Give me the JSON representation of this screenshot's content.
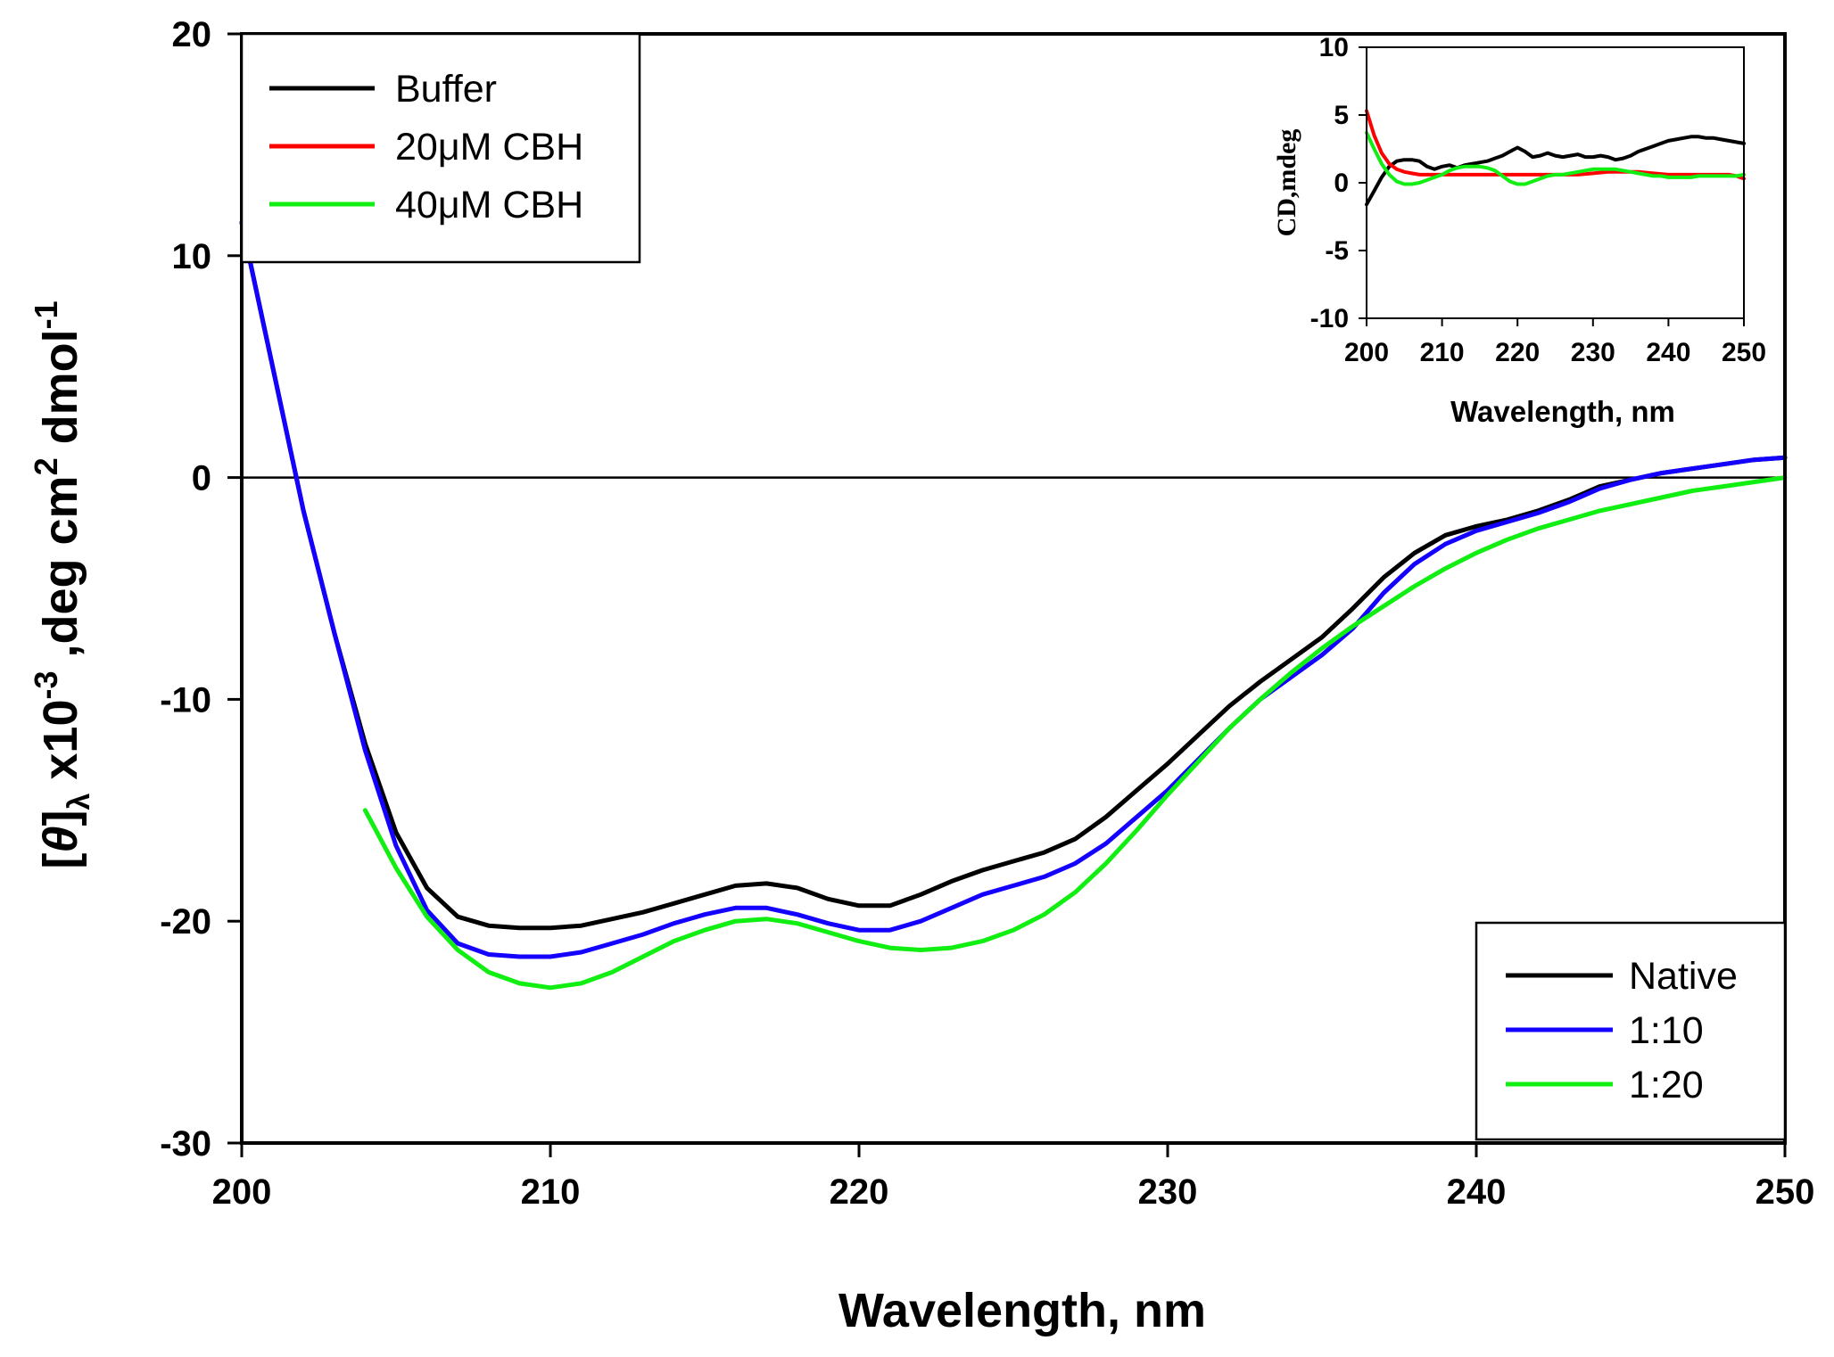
{
  "chart_data": [
    {
      "type": "line",
      "role": "main",
      "xlabel": "Wavelength, nm",
      "ylabel": {
        "bracket_open": "[",
        "theta": "θ",
        "bracket_close": "]",
        "subscript": "λ",
        "multiplier": " x10",
        "exp1": "-3",
        "unit_part1": " ,deg cm",
        "exp2": "2",
        "unit_part2": " dmol",
        "exp3": "-1"
      },
      "xlim": [
        200,
        250
      ],
      "ylim": [
        -30,
        20
      ],
      "xticks": [
        "200",
        "210",
        "220",
        "230",
        "240",
        "250"
      ],
      "yticks": [
        "-30",
        "-20",
        "-10",
        "0",
        "10",
        "20"
      ],
      "zero_line": true,
      "legend": {
        "placement": "bottom-right"
      },
      "series": [
        {
          "name": "Native",
          "color": "#000000",
          "x": [
            200,
            201,
            202,
            203,
            204,
            205,
            206,
            207,
            208,
            209,
            210,
            211,
            212,
            213,
            214,
            215,
            216,
            217,
            218,
            219,
            220,
            221,
            222,
            223,
            224,
            225,
            226,
            227,
            228,
            229,
            230,
            231,
            232,
            233,
            234,
            235,
            236,
            237,
            238,
            239,
            240,
            241,
            242,
            243,
            244,
            245,
            246,
            247,
            248,
            249,
            250
          ],
          "y": [
            11.5,
            5.0,
            -1.5,
            -7.0,
            -12.0,
            -16.0,
            -18.5,
            -19.8,
            -20.2,
            -20.3,
            -20.3,
            -20.2,
            -19.9,
            -19.6,
            -19.2,
            -18.8,
            -18.4,
            -18.3,
            -18.5,
            -19.0,
            -19.3,
            -19.3,
            -18.8,
            -18.2,
            -17.7,
            -17.3,
            -16.9,
            -16.3,
            -15.3,
            -14.1,
            -12.9,
            -11.6,
            -10.3,
            -9.2,
            -8.2,
            -7.2,
            -5.9,
            -4.5,
            -3.4,
            -2.6,
            -2.2,
            -1.9,
            -1.5,
            -1.0,
            -0.4,
            -0.1,
            0.2,
            0.4,
            0.6,
            0.8,
            0.9
          ]
        },
        {
          "name": "1:10",
          "color": "#1400ff",
          "x": [
            200,
            201,
            202,
            203,
            204,
            205,
            206,
            207,
            208,
            209,
            210,
            211,
            212,
            213,
            214,
            215,
            216,
            217,
            218,
            219,
            220,
            221,
            222,
            223,
            224,
            225,
            226,
            227,
            228,
            229,
            230,
            231,
            232,
            233,
            234,
            235,
            236,
            237,
            238,
            239,
            240,
            241,
            242,
            243,
            244,
            245,
            246,
            247,
            248,
            249,
            250
          ],
          "y": [
            11.5,
            5.0,
            -1.5,
            -7.0,
            -12.3,
            -16.6,
            -19.5,
            -21.0,
            -21.5,
            -21.6,
            -21.6,
            -21.4,
            -21.0,
            -20.6,
            -20.1,
            -19.7,
            -19.4,
            -19.4,
            -19.7,
            -20.1,
            -20.4,
            -20.4,
            -20.0,
            -19.4,
            -18.8,
            -18.4,
            -18.0,
            -17.4,
            -16.5,
            -15.3,
            -14.1,
            -12.7,
            -11.3,
            -10.0,
            -9.0,
            -8.0,
            -6.8,
            -5.2,
            -3.9,
            -3.0,
            -2.4,
            -2.0,
            -1.6,
            -1.1,
            -0.5,
            -0.1,
            0.2,
            0.4,
            0.6,
            0.8,
            0.9
          ]
        },
        {
          "name": "1:20",
          "color": "#11ee11",
          "x": [
            204,
            205,
            206,
            207,
            208,
            209,
            210,
            211,
            212,
            213,
            214,
            215,
            216,
            217,
            218,
            219,
            220,
            221,
            222,
            223,
            224,
            225,
            226,
            227,
            228,
            229,
            230,
            231,
            232,
            233,
            234,
            235,
            236,
            237,
            238,
            239,
            240,
            241,
            242,
            243,
            244,
            245,
            246,
            247,
            248,
            249,
            250
          ],
          "y": [
            -15.0,
            -17.6,
            -19.8,
            -21.3,
            -22.3,
            -22.8,
            -23.0,
            -22.8,
            -22.3,
            -21.6,
            -20.9,
            -20.4,
            -20.0,
            -19.9,
            -20.1,
            -20.5,
            -20.9,
            -21.2,
            -21.3,
            -21.2,
            -20.9,
            -20.4,
            -19.7,
            -18.7,
            -17.4,
            -15.9,
            -14.3,
            -12.8,
            -11.3,
            -10.0,
            -8.8,
            -7.7,
            -6.7,
            -5.8,
            -4.9,
            -4.1,
            -3.4,
            -2.8,
            -2.3,
            -1.9,
            -1.5,
            -1.2,
            -0.9,
            -0.6,
            -0.4,
            -0.2,
            0.0
          ]
        }
      ]
    },
    {
      "type": "line",
      "role": "inset",
      "xlabel": "Wavelength, nm",
      "ylabel": "CD,mdeg",
      "xlim": [
        200,
        250
      ],
      "ylim": [
        -10,
        10
      ],
      "xticks": [
        "200",
        "210",
        "220",
        "230",
        "240",
        "250"
      ],
      "yticks": [
        "-10",
        "-5",
        "0",
        "5",
        "10"
      ],
      "legend": {
        "placement": "top-left"
      },
      "series": [
        {
          "name": "Buffer",
          "color": "#000000",
          "x": [
            200,
            201,
            202,
            203,
            204,
            205,
            206,
            207,
            208,
            209,
            210,
            211,
            212,
            213,
            214,
            215,
            216,
            217,
            218,
            219,
            220,
            221,
            222,
            223,
            224,
            225,
            226,
            227,
            228,
            229,
            230,
            231,
            232,
            233,
            234,
            235,
            236,
            237,
            238,
            239,
            240,
            241,
            242,
            243,
            244,
            245,
            246,
            247,
            248,
            249,
            250
          ],
          "y": [
            -1.6,
            -0.6,
            0.4,
            1.2,
            1.6,
            1.7,
            1.7,
            1.6,
            1.2,
            1.0,
            1.2,
            1.3,
            1.1,
            1.3,
            1.4,
            1.5,
            1.6,
            1.8,
            2.0,
            2.3,
            2.6,
            2.3,
            1.9,
            2.0,
            2.2,
            2.0,
            1.9,
            2.0,
            2.1,
            1.9,
            1.9,
            2.0,
            1.9,
            1.7,
            1.8,
            2.0,
            2.3,
            2.5,
            2.7,
            2.9,
            3.1,
            3.2,
            3.3,
            3.4,
            3.4,
            3.3,
            3.3,
            3.2,
            3.1,
            3.0,
            2.9
          ]
        },
        {
          "name": "20μM CBH",
          "color": "#ff0000",
          "x": [
            200,
            201,
            202,
            203,
            204,
            205,
            206,
            207,
            208,
            209,
            210,
            212,
            214,
            216,
            218,
            220,
            222,
            224,
            226,
            228,
            230,
            232,
            234,
            236,
            238,
            240,
            242,
            244,
            246,
            248,
            249,
            250
          ],
          "y": [
            5.3,
            3.5,
            2.2,
            1.4,
            1.0,
            0.8,
            0.7,
            0.6,
            0.6,
            0.6,
            0.6,
            0.6,
            0.6,
            0.6,
            0.6,
            0.6,
            0.6,
            0.6,
            0.6,
            0.6,
            0.7,
            0.8,
            0.8,
            0.8,
            0.7,
            0.6,
            0.6,
            0.6,
            0.6,
            0.6,
            0.5,
            0.3
          ]
        },
        {
          "name": "40μM CBH",
          "color": "#11ee11",
          "x": [
            200,
            201,
            202,
            203,
            204,
            205,
            206,
            207,
            208,
            209,
            210,
            211,
            212,
            213,
            214,
            215,
            216,
            217,
            218,
            219,
            220,
            221,
            222,
            223,
            224,
            225,
            226,
            227,
            228,
            229,
            230,
            231,
            232,
            233,
            234,
            235,
            236,
            237,
            238,
            239,
            240,
            241,
            242,
            243,
            244,
            245,
            246,
            247,
            248,
            249,
            250
          ],
          "y": [
            3.7,
            2.5,
            1.4,
            0.6,
            0.1,
            -0.1,
            -0.1,
            0.0,
            0.2,
            0.4,
            0.6,
            0.9,
            1.1,
            1.2,
            1.2,
            1.2,
            1.1,
            0.9,
            0.5,
            0.1,
            -0.1,
            -0.1,
            0.1,
            0.3,
            0.5,
            0.6,
            0.6,
            0.7,
            0.8,
            0.9,
            1.0,
            1.0,
            1.0,
            1.0,
            0.9,
            0.8,
            0.7,
            0.6,
            0.5,
            0.5,
            0.4,
            0.4,
            0.4,
            0.4,
            0.5,
            0.5,
            0.5,
            0.5,
            0.5,
            0.5,
            0.6
          ]
        }
      ]
    }
  ]
}
